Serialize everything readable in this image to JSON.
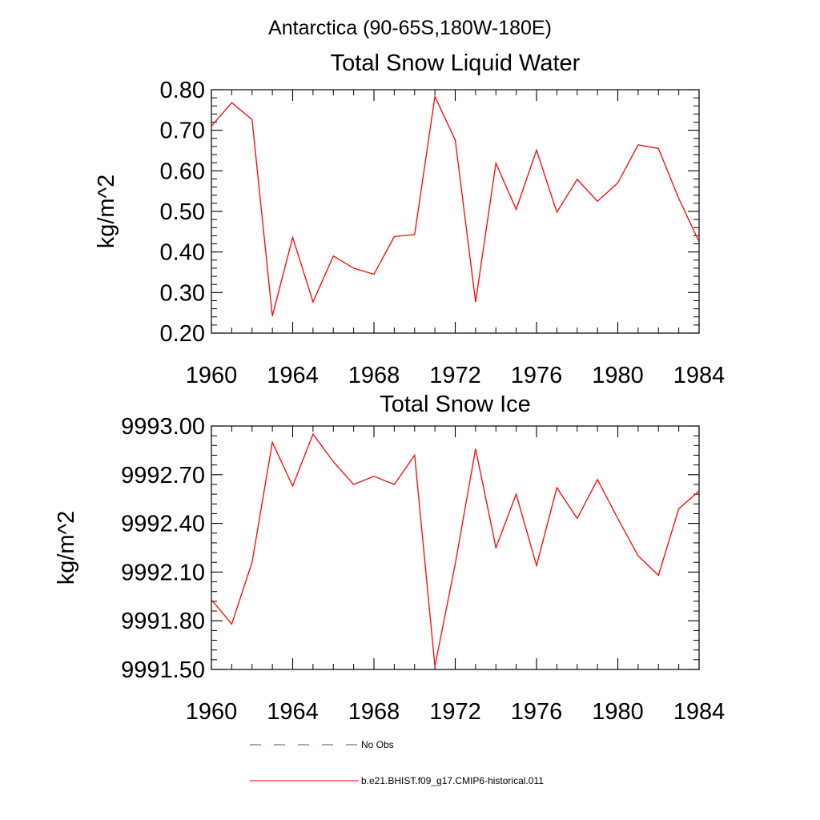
{
  "figure_title": "Antarctica (90-65S,180W-180E)",
  "chart_data": [
    {
      "type": "line",
      "title": "Total Snow Liquid Water",
      "xlabel": "",
      "ylabel": "kg/m^2",
      "xlim": [
        1960,
        1984
      ],
      "ylim": [
        0.2,
        0.8
      ],
      "x_ticks": [
        1960,
        1964,
        1968,
        1972,
        1976,
        1980,
        1984
      ],
      "y_ticks": [
        0.2,
        0.3,
        0.4,
        0.5,
        0.6,
        0.7,
        0.8
      ],
      "y_tick_labels": [
        "0.20",
        "0.30",
        "0.40",
        "0.50",
        "0.60",
        "0.70",
        "0.80"
      ],
      "grid": false,
      "series": [
        {
          "name": "b.e21.BHIST.f09_g17.CMIP6-historical.011",
          "color": "#ff0000",
          "x": [
            1960,
            1961,
            1962,
            1963,
            1964,
            1965,
            1966,
            1967,
            1968,
            1969,
            1970,
            1971,
            1972,
            1973,
            1974,
            1975,
            1976,
            1977,
            1978,
            1979,
            1980,
            1981,
            1982,
            1983,
            1984
          ],
          "values": [
            0.71,
            0.768,
            0.726,
            0.242,
            0.436,
            0.277,
            0.39,
            0.36,
            0.345,
            0.438,
            0.443,
            0.783,
            0.676,
            0.277,
            0.619,
            0.505,
            0.651,
            0.498,
            0.579,
            0.525,
            0.57,
            0.664,
            0.655,
            0.532,
            0.425
          ]
        }
      ]
    },
    {
      "type": "line",
      "title": "Total Snow Ice",
      "xlabel": "",
      "ylabel": "kg/m^2",
      "xlim": [
        1960,
        1984
      ],
      "ylim": [
        9991.5,
        9993.0
      ],
      "x_ticks": [
        1960,
        1964,
        1968,
        1972,
        1976,
        1980,
        1984
      ],
      "y_ticks": [
        9991.5,
        9991.8,
        9992.1,
        9992.4,
        9992.7,
        9993.0
      ],
      "y_tick_labels": [
        "9991.50",
        "9991.80",
        "9992.10",
        "9992.40",
        "9992.70",
        "9993.00"
      ],
      "grid": false,
      "series": [
        {
          "name": "b.e21.BHIST.f09_g17.CMIP6-historical.011",
          "color": "#ff0000",
          "x": [
            1960,
            1961,
            1962,
            1963,
            1964,
            1965,
            1966,
            1967,
            1968,
            1969,
            1970,
            1971,
            1972,
            1973,
            1974,
            1975,
            1976,
            1977,
            1978,
            1979,
            1980,
            1981,
            1982,
            1983,
            1984
          ],
          "values": [
            9991.93,
            9991.78,
            9992.16,
            9992.9,
            9992.63,
            9992.95,
            9992.78,
            9992.64,
            9992.69,
            9992.64,
            9992.82,
            9991.52,
            9992.15,
            9992.86,
            9992.25,
            9992.58,
            9992.14,
            9992.62,
            9992.43,
            9992.67,
            9992.43,
            9992.2,
            9992.08,
            9992.49,
            9992.6
          ]
        }
      ]
    }
  ],
  "legend": {
    "items": [
      {
        "label": "No Obs",
        "color": "#4a5a88",
        "dash": "dashed"
      },
      {
        "label": "b.e21.BHIST.f09_g17.CMIP6-historical.011",
        "color": "#ff0000",
        "dash": "solid"
      }
    ]
  }
}
